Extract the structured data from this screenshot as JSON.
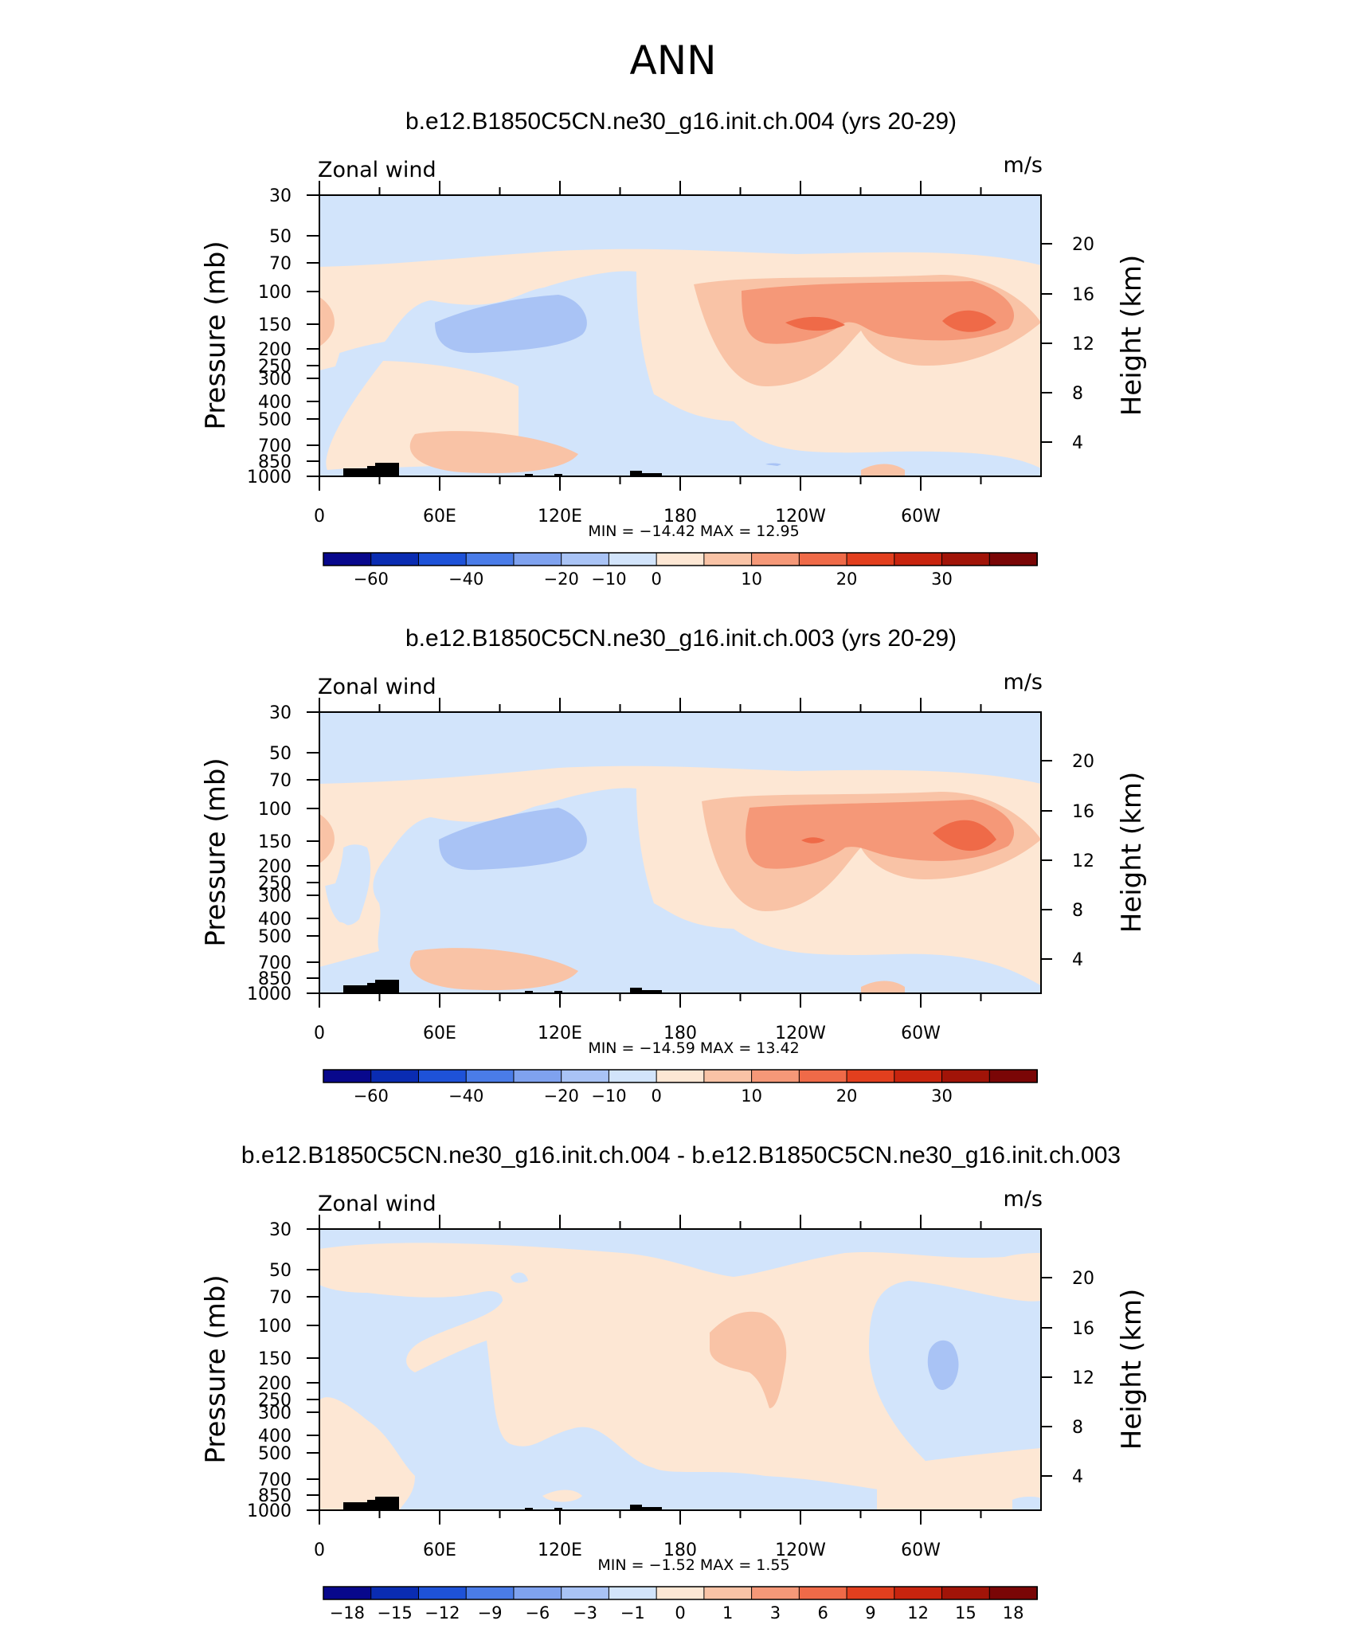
{
  "page_title": "ANN",
  "chart_data": [
    {
      "type": "heatmap",
      "title": "b.e12.B1850C5CN.ne30_g16.init.ch.004 (yrs 20-29)",
      "left_label": "Zonal wind",
      "units": "m/s",
      "ylabel": "Pressure (mb)",
      "ylabel_right": "Height (km)",
      "stats": "MIN = −14.42   MAX =  12.95",
      "x_ticks": [
        "0",
        "60E",
        "120E",
        "180",
        "120W",
        "60W"
      ],
      "y_ticks": [
        "30",
        "50",
        "70",
        "100",
        "150",
        "200",
        "250",
        "300",
        "400",
        "500",
        "700",
        "850",
        "1000"
      ],
      "y_ticks_right": [
        "20",
        "16",
        "12",
        "8",
        "4"
      ],
      "colorbar_labels": [
        "−60",
        "−40",
        "−20",
        "−10",
        "0",
        "10",
        "20",
        "30"
      ],
      "colorbar_colors": [
        "#08088c",
        "#0a2cb2",
        "#1e52d8",
        "#4a7ce8",
        "#7fa2ef",
        "#a9c3f5",
        "#d2e4fb",
        "#fde7d4",
        "#f9c3a6",
        "#f59878",
        "#ef6a48",
        "#e23f1e",
        "#c8240e",
        "#a11408",
        "#7a0606"
      ],
      "grid": false
    },
    {
      "type": "heatmap",
      "title": "b.e12.B1850C5CN.ne30_g16.init.ch.003 (yrs 20-29)",
      "left_label": "Zonal wind",
      "units": "m/s",
      "ylabel": "Pressure (mb)",
      "ylabel_right": "Height (km)",
      "stats": "MIN = −14.59   MAX =  13.42",
      "x_ticks": [
        "0",
        "60E",
        "120E",
        "180",
        "120W",
        "60W"
      ],
      "y_ticks": [
        "30",
        "50",
        "70",
        "100",
        "150",
        "200",
        "250",
        "300",
        "400",
        "500",
        "700",
        "850",
        "1000"
      ],
      "y_ticks_right": [
        "20",
        "16",
        "12",
        "8",
        "4"
      ],
      "colorbar_labels": [
        "−60",
        "−40",
        "−20",
        "−10",
        "0",
        "10",
        "20",
        "30"
      ],
      "colorbar_colors": [
        "#08088c",
        "#0a2cb2",
        "#1e52d8",
        "#4a7ce8",
        "#7fa2ef",
        "#a9c3f5",
        "#d2e4fb",
        "#fde7d4",
        "#f9c3a6",
        "#f59878",
        "#ef6a48",
        "#e23f1e",
        "#c8240e",
        "#a11408",
        "#7a0606"
      ],
      "grid": false
    },
    {
      "type": "heatmap",
      "title": "b.e12.B1850C5CN.ne30_g16.init.ch.004 - b.e12.B1850C5CN.ne30_g16.init.ch.003",
      "left_label": "Zonal wind",
      "units": "m/s",
      "ylabel": "Pressure (mb)",
      "ylabel_right": "Height (km)",
      "stats": "MIN =   −1.52   MAX =    1.55",
      "x_ticks": [
        "0",
        "60E",
        "120E",
        "180",
        "120W",
        "60W"
      ],
      "y_ticks": [
        "30",
        "50",
        "70",
        "100",
        "150",
        "200",
        "250",
        "300",
        "400",
        "500",
        "700",
        "850",
        "1000"
      ],
      "y_ticks_right": [
        "20",
        "16",
        "12",
        "8",
        "4"
      ],
      "colorbar_labels": [
        "−18",
        "−15",
        "−12",
        "−9",
        "−6",
        "−3",
        "−1",
        "0",
        "1",
        "3",
        "6",
        "9",
        "12",
        "15",
        "18"
      ],
      "colorbar_colors": [
        "#08088c",
        "#0a2cb2",
        "#1e52d8",
        "#4a7ce8",
        "#7fa2ef",
        "#a9c3f5",
        "#d2e4fb",
        "#fde7d4",
        "#f9c3a6",
        "#f59878",
        "#ef6a48",
        "#e23f1e",
        "#c8240e",
        "#a11408",
        "#7a0606"
      ],
      "grid": false
    }
  ]
}
